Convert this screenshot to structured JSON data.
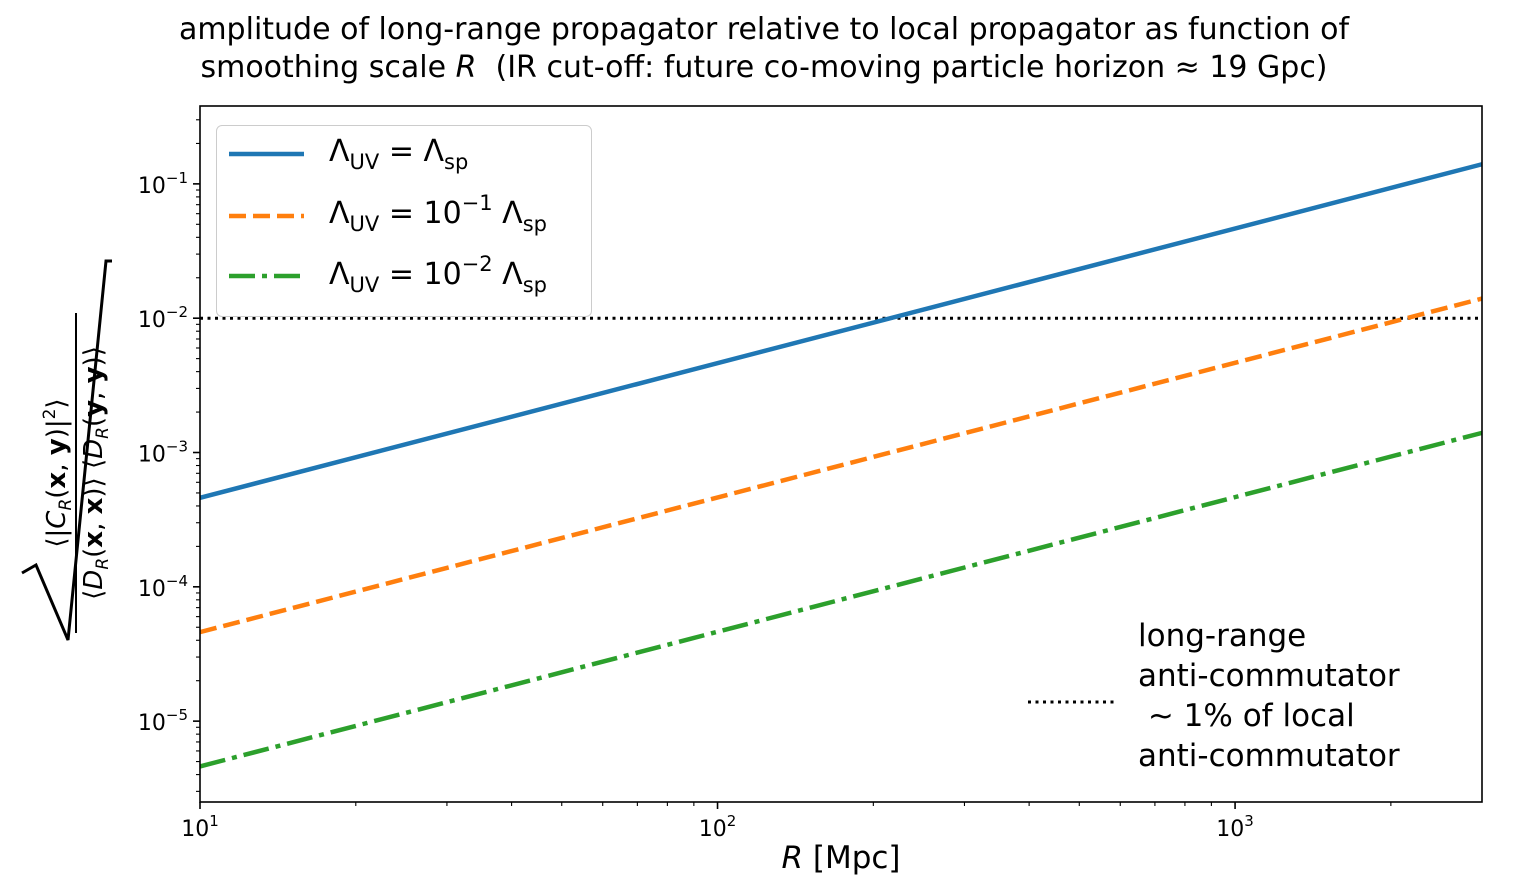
{
  "title": {
    "line1": "amplitude of long-range propagator relative to local propagator as function of",
    "line2_prefix": "smoothing scale ",
    "line2_var": "R",
    "line2_suffix": "  (IR cut-off: future co-moving particle horizon ≈ 19 Gpc)"
  },
  "chart_data": {
    "type": "line",
    "title": "amplitude of long-range propagator relative to local propagator as function of smoothing scale R (IR cut-off: future co-moving particle horizon ≈ 19 Gpc)",
    "xlabel": "R [Mpc]",
    "ylabel": "sqrt( ⟨|C_R(x,y)|²⟩ / (⟨D_R(x,x)⟩ ⟨D_R(y,y)⟩) )",
    "xscale": "log",
    "yscale": "log",
    "xlim": [
      10,
      3000
    ],
    "ylim": [
      2.5e-06,
      0.38
    ],
    "xticks": [
      {
        "value": 10,
        "base": "10",
        "exp": "1"
      },
      {
        "value": 100,
        "base": "10",
        "exp": "2"
      },
      {
        "value": 1000,
        "base": "10",
        "exp": "3"
      }
    ],
    "yticks": [
      {
        "value": 1e-05,
        "base": "10",
        "exp": "−5"
      },
      {
        "value": 0.0001,
        "base": "10",
        "exp": "−4"
      },
      {
        "value": 0.001,
        "base": "10",
        "exp": "−3"
      },
      {
        "value": 0.01,
        "base": "10",
        "exp": "−2"
      },
      {
        "value": 0.1,
        "base": "10",
        "exp": "−1"
      }
    ],
    "grid": false,
    "legend_position": "upper-left",
    "series": [
      {
        "name": "Λ_UV = Λ_sp",
        "color": "#1f77b4",
        "style": "solid",
        "x": [
          10,
          3000
        ],
        "y": [
          0.00046,
          0.14
        ]
      },
      {
        "name": "Λ_UV = 10^-1 Λ_sp",
        "color": "#ff7f0e",
        "style": "dashed",
        "x": [
          10,
          3000
        ],
        "y": [
          4.6e-05,
          0.014
        ]
      },
      {
        "name": "Λ_UV = 10^-2 Λ_sp",
        "color": "#2ca02c",
        "style": "dashdot",
        "x": [
          10,
          3000
        ],
        "y": [
          4.6e-06,
          0.0014
        ]
      }
    ],
    "reference_line": {
      "y": 0.01,
      "color": "#000000",
      "style": "dotted"
    }
  },
  "legend": {
    "s1": {
      "lhs": "Λ",
      "lhs_sub": "UV",
      "eq": " = ",
      "rhs": "Λ",
      "rhs_sub": "sp"
    },
    "s2": {
      "lhs": "Λ",
      "lhs_sub": "UV",
      "eq": " = 10",
      "exp": "−1",
      "rhs": " Λ",
      "rhs_sub": "sp"
    },
    "s3": {
      "lhs": "Λ",
      "lhs_sub": "UV",
      "eq": " = 10",
      "exp": "−2",
      "rhs": " Λ",
      "rhs_sub": "sp"
    }
  },
  "annotation": "long-range\nanti-commutator\n ∼ 1% of local\nanti-commutator",
  "axis": {
    "xlabel_var": "R",
    "xlabel_unit": " [Mpc]"
  }
}
